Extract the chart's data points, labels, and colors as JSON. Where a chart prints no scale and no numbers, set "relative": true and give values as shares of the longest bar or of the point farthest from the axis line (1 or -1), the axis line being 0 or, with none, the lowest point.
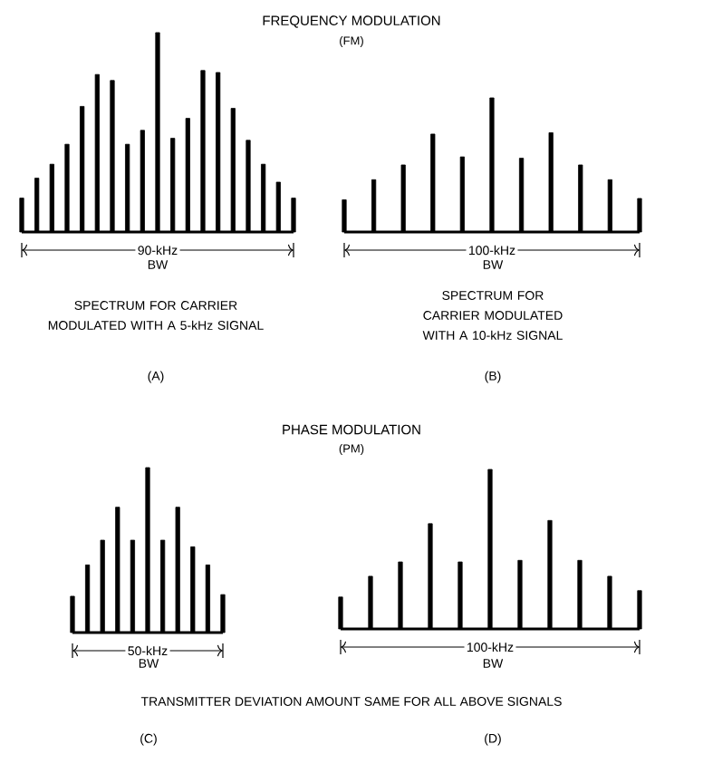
{
  "chart_data": [
    {
      "type": "other",
      "title": "FREQUENCY MODULATION",
      "subtitle": "(FM)"
    },
    {
      "type": "bar",
      "relative": true,
      "xlabel": "90-kHz",
      "color": "#000000",
      "categories": [
        null,
        null,
        null,
        null,
        null,
        null,
        null,
        null,
        null,
        null,
        null,
        null,
        null,
        null,
        null,
        null,
        null,
        null,
        null
      ],
      "values": [
        0.17,
        0.27,
        0.34,
        0.44,
        0.63,
        0.79,
        0.76,
        0.44,
        0.51,
        1,
        0.47,
        0.57,
        0.81,
        0.8,
        0.62,
        0.46,
        0.34,
        0.25,
        0.17
      ],
      "annotations": [
        "BW",
        "SPECTRUM FOR CARRIER MODULATED WITH A 5-kHz SIGNAL",
        "(A)"
      ]
    },
    {
      "type": "bar",
      "relative": true,
      "xlabel": "100-kHz",
      "color": "#000000",
      "categories": [
        null,
        null,
        null,
        null,
        null,
        null,
        null,
        null,
        null,
        null,
        null
      ],
      "values": [
        0.24,
        0.39,
        0.5,
        0.73,
        0.56,
        1,
        0.55,
        0.74,
        0.5,
        0.39,
        0.25
      ],
      "annotations": [
        "BW",
        "SPECTRUM FOR CARRIER MODULATED WITH A 10-kHz SIGNAL",
        "(B)"
      ]
    },
    {
      "type": "other",
      "title": "PHASE MODULATION",
      "subtitle": "(PM)"
    },
    {
      "type": "bar",
      "relative": true,
      "xlabel": "50-kHz",
      "color": "#000000",
      "categories": [
        null,
        null,
        null,
        null,
        null,
        null,
        null,
        null,
        null,
        null,
        null
      ],
      "values": [
        0.22,
        0.41,
        0.56,
        0.76,
        0.56,
        1,
        0.56,
        0.76,
        0.52,
        0.41,
        0.23
      ],
      "annotations": [
        "BW",
        "TRANSMITTER DEVIATION AMOUNT SAME FOR ALL ABOVE SIGNALS",
        "(C)"
      ]
    },
    {
      "type": "bar",
      "relative": true,
      "xlabel": "100-kHz",
      "color": "#000000",
      "categories": [
        null,
        null,
        null,
        null,
        null,
        null,
        null,
        null,
        null,
        null,
        null
      ],
      "values": [
        0.2,
        0.33,
        0.42,
        0.66,
        0.42,
        1,
        0.43,
        0.68,
        0.43,
        0.33,
        0.24
      ],
      "annotations": [
        "BW",
        "(D)"
      ]
    }
  ]
}
